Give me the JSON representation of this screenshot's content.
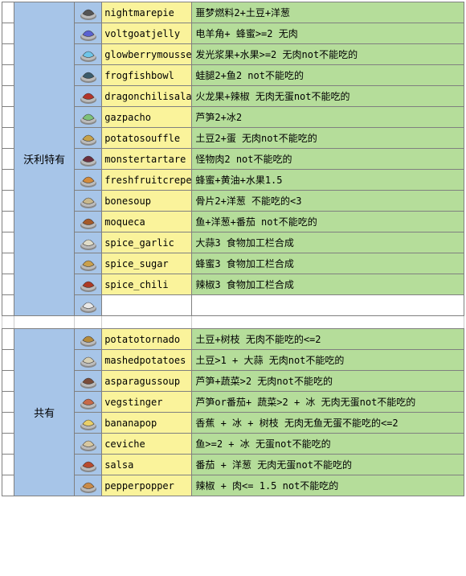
{
  "colors": {
    "blue": "#a7c5e8",
    "yellow": "#faf39b",
    "green": "#b5dd9a",
    "border": "#808080"
  },
  "sections": [
    {
      "category": "沃利特有",
      "rows": [
        {
          "icon": "nightmarepie",
          "iconColor": "#555",
          "name": "nightmarepie",
          "desc": "噩梦燃料2+土豆+洋葱"
        },
        {
          "icon": "voltgoatjelly",
          "iconColor": "#5a62d1",
          "name": "voltgoatjelly",
          "desc": "电羊角+ 蜂蜜>=2   无肉"
        },
        {
          "icon": "glowberrymousse",
          "iconColor": "#6ec5e8",
          "name": "glowberrymousse",
          "desc": "发光浆果+水果>=2  无肉not不能吃的"
        },
        {
          "icon": "frogfishbowl",
          "iconColor": "#3b5b6b",
          "name": "frogfishbowl",
          "desc": "蛙腿2+鱼2         not不能吃的"
        },
        {
          "icon": "dragonchilisalad",
          "iconColor": "#b3352a",
          "name": "dragonchilisalad",
          "desc": "火龙果+辣椒       无肉无蛋not不能吃的"
        },
        {
          "icon": "gazpacho",
          "iconColor": "#7ec27a",
          "name": "gazpacho",
          "desc": "芦笋2+冰2"
        },
        {
          "icon": "potatosouffle",
          "iconColor": "#c7a24a",
          "name": "potatosouffle",
          "desc": "土豆2+蛋          无肉not不能吃的"
        },
        {
          "icon": "monstertartare",
          "iconColor": "#6b2f3f",
          "name": "monstertartare",
          "desc": "怪物肉2           not不能吃的"
        },
        {
          "icon": "freshfruitcrepes",
          "iconColor": "#d38b3c",
          "name": "freshfruitcrepes",
          "desc": "蜂蜜+黄油+水果1.5"
        },
        {
          "icon": "bonesoup",
          "iconColor": "#c9b88c",
          "name": "bonesoup",
          "desc": "骨片2+洋葱         不能吃的<3"
        },
        {
          "icon": "moqueca",
          "iconColor": "#a55a2a",
          "name": "moqueca",
          "desc": "鱼+洋葱+番茄       not不能吃的"
        },
        {
          "icon": "spice_garlic",
          "iconColor": "#e0dcc8",
          "name": "spice_garlic",
          "desc": "大蒜3  食物加工栏合成"
        },
        {
          "icon": "spice_sugar",
          "iconColor": "#caa04d",
          "name": "spice_sugar",
          "desc": "蜂蜜3  食物加工栏合成"
        },
        {
          "icon": "spice_chili",
          "iconColor": "#ad3a24",
          "name": "spice_chili",
          "desc": "辣椒3  食物加工栏合成"
        },
        {
          "icon": "extra",
          "iconColor": "#e8e8e8",
          "name": "",
          "desc": "",
          "blankTail": true
        }
      ]
    },
    {
      "category": "共有",
      "rows": [
        {
          "icon": "potatotornado",
          "iconColor": "#b58b3b",
          "name": "potatotornado",
          "desc": "土豆+树枝       无肉不能吃的<=2"
        },
        {
          "icon": "mashedpotatoes",
          "iconColor": "#d7d0b5",
          "name": "mashedpotatoes",
          "desc": "土豆>1 + 大蒜     无肉not不能吃的"
        },
        {
          "icon": "asparagussoup",
          "iconColor": "#7a4d3a",
          "name": "asparagussoup",
          "desc": "芦笋+蔬菜>2     无肉not不能吃的"
        },
        {
          "icon": "vegstinger",
          "iconColor": "#c76a4a",
          "name": "vegstinger",
          "desc": "芦笋or番茄+ 蔬菜>2 + 冰   无肉无蛋not不能吃的"
        },
        {
          "icon": "bananapop",
          "iconColor": "#e9cf69",
          "name": "bananapop",
          "desc": "香蕉 + 冰 + 树枝   无肉无鱼无蛋不能吃的<=2"
        },
        {
          "icon": "ceviche",
          "iconColor": "#d7c7a0",
          "name": "ceviche",
          "desc": "鱼>=2 + 冰   无蛋not不能吃的"
        },
        {
          "icon": "salsa",
          "iconColor": "#b84b2e",
          "name": "salsa",
          "desc": "番茄  + 洋葱  无肉无蛋not不能吃的"
        },
        {
          "icon": "pepperpopper",
          "iconColor": "#c98b49",
          "name": "pepperpopper",
          "desc": "辣椒 + 肉<= 1.5  not不能吃的"
        }
      ]
    }
  ]
}
